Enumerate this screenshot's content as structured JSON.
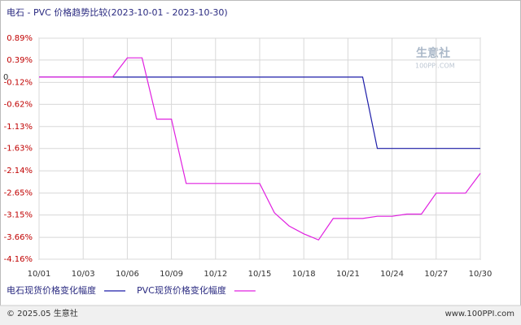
{
  "chart_data": {
    "type": "line",
    "title": "电石 - PVC 价格趋势比较(2023-10-01 - 2023-10-30)",
    "categories": [
      "10/01",
      null,
      null,
      "10/03",
      null,
      null,
      "10/06",
      null,
      null,
      "10/09",
      null,
      null,
      "10/12",
      null,
      null,
      "10/15",
      null,
      null,
      "10/18",
      null,
      null,
      "10/21",
      null,
      null,
      "10/24",
      null,
      null,
      "10/27",
      null,
      null,
      "10/30"
    ],
    "series": [
      {
        "name": "电石现货价格变化幅度",
        "color": "#1c1ca8",
        "values": [
          0,
          0,
          0,
          0,
          0,
          0,
          0,
          0,
          0,
          0,
          0,
          0,
          0,
          0,
          0,
          0,
          0,
          0,
          0,
          0,
          0,
          0,
          0,
          -1.63,
          -1.63,
          -1.63,
          -1.63,
          -1.63,
          -1.63,
          -1.63,
          -1.63
        ]
      },
      {
        "name": "PVC现货价格变化幅度",
        "color": "#e020e0",
        "values": [
          0,
          0,
          0,
          0,
          0,
          0,
          0.44,
          0.44,
          -0.96,
          -0.96,
          -2.43,
          -2.43,
          -2.43,
          -2.43,
          -2.43,
          -2.43,
          -3.1,
          -3.4,
          -3.58,
          -3.72,
          -3.23,
          -3.23,
          -3.23,
          -3.18,
          -3.18,
          -3.13,
          -3.13,
          -2.65,
          -2.65,
          -2.65,
          -2.2
        ]
      }
    ],
    "ylim": [
      -4.16,
      0.89
    ],
    "yticks": [
      {
        "value": 0.89,
        "label": "0.89%"
      },
      {
        "value": 0.39,
        "label": "0.39%"
      },
      {
        "value": -0.12,
        "label": "-0.12%"
      },
      {
        "value": -0.62,
        "label": "-0.62%"
      },
      {
        "value": -1.13,
        "label": "-1.13%"
      },
      {
        "value": -1.63,
        "label": "-1.63%"
      },
      {
        "value": -2.14,
        "label": "-2.14%"
      },
      {
        "value": -2.65,
        "label": "-2.65%"
      },
      {
        "value": -3.15,
        "label": "-3.15%"
      },
      {
        "value": -3.66,
        "label": "-3.66%"
      },
      {
        "value": -4.16,
        "label": "-4.16%"
      }
    ],
    "baseline": {
      "value": 0,
      "label": "0"
    },
    "grid": true,
    "watermark": [
      "生意社",
      "100PPI.COM"
    ],
    "footer_left": "© 2025.05 生意社",
    "footer_right": "www.100PPI.com"
  }
}
